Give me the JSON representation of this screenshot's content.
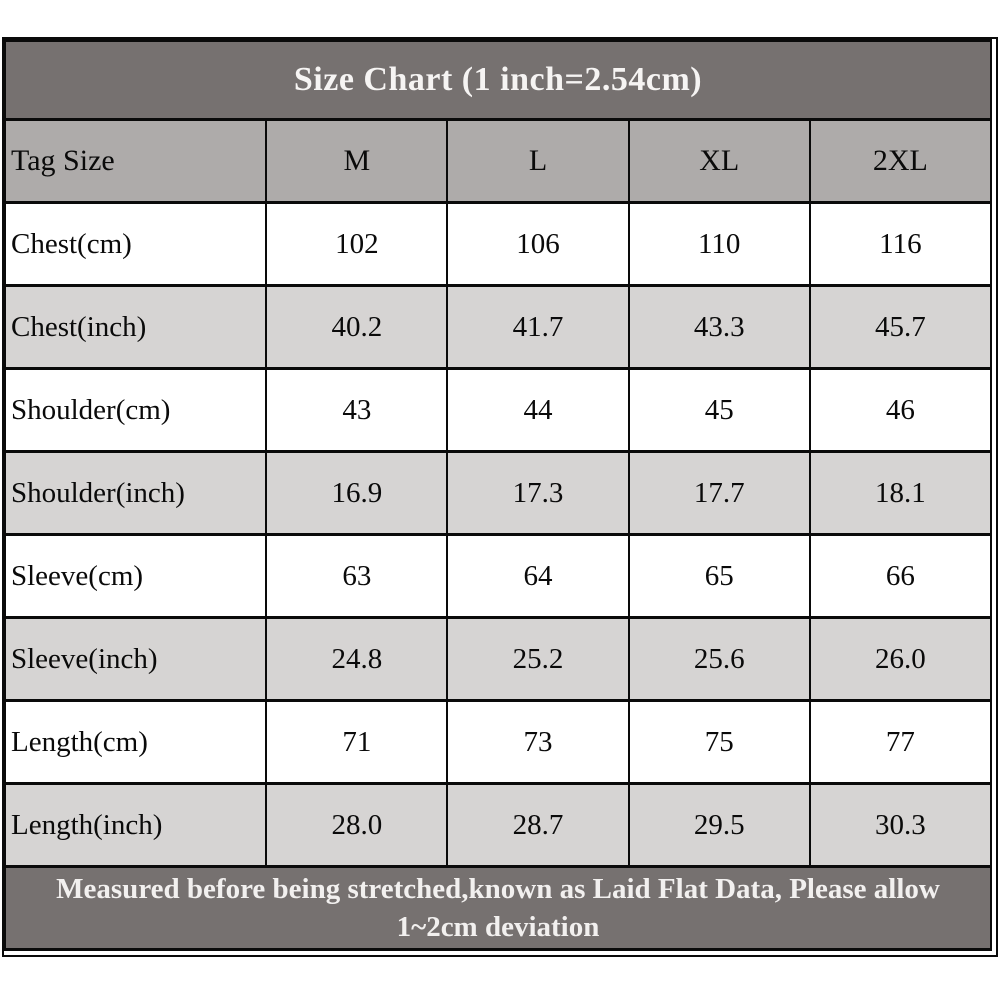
{
  "title": "Size Chart (1 inch=2.54cm)",
  "columns": [
    "Tag Size",
    "M",
    "L",
    "XL",
    "2XL"
  ],
  "rows": [
    {
      "label": "Chest(cm)",
      "values": [
        "102",
        "106",
        "110",
        "116"
      ]
    },
    {
      "label": "Chest(inch)",
      "values": [
        "40.2",
        "41.7",
        "43.3",
        "45.7"
      ]
    },
    {
      "label": "Shoulder(cm)",
      "values": [
        "43",
        "44",
        "45",
        "46"
      ]
    },
    {
      "label": "Shoulder(inch)",
      "values": [
        "16.9",
        "17.3",
        "17.7",
        "18.1"
      ]
    },
    {
      "label": "Sleeve(cm)",
      "values": [
        "63",
        "64",
        "65",
        "66"
      ]
    },
    {
      "label": "Sleeve(inch)",
      "values": [
        "24.8",
        "25.2",
        "25.6",
        "26.0"
      ]
    },
    {
      "label": "Length(cm)",
      "values": [
        "71",
        "73",
        "75",
        "77"
      ]
    },
    {
      "label": "Length(inch)",
      "values": [
        "28.0",
        "28.7",
        "29.5",
        "30.3"
      ]
    }
  ],
  "footer_note": "Measured before being stretched,known as Laid Flat Data, Please allow 1~2cm deviation",
  "colors": {
    "title_bg": "#767170",
    "column_header_bg": "#aeabaa",
    "row_bg": "#ffffff",
    "row_alt_bg": "#d6d4d3",
    "border": "#0a0a0a",
    "title_text": "#f6f4f3",
    "body_text": "#0a0a0a"
  },
  "chart_data": {
    "type": "table",
    "title": "Size Chart (1 inch=2.54cm)",
    "columns": [
      "Tag Size",
      "M",
      "L",
      "XL",
      "2XL"
    ],
    "rows": [
      [
        "Chest(cm)",
        102,
        106,
        110,
        116
      ],
      [
        "Chest(inch)",
        40.2,
        41.7,
        43.3,
        45.7
      ],
      [
        "Shoulder(cm)",
        43,
        44,
        45,
        46
      ],
      [
        "Shoulder(inch)",
        16.9,
        17.3,
        17.7,
        18.1
      ],
      [
        "Sleeve(cm)",
        63,
        64,
        65,
        66
      ],
      [
        "Sleeve(inch)",
        24.8,
        25.2,
        25.6,
        26.0
      ],
      [
        "Length(cm)",
        71,
        73,
        75,
        77
      ],
      [
        "Length(inch)",
        28.0,
        28.7,
        29.5,
        30.3
      ]
    ],
    "footnote": "Measured before being stretched,known as Laid Flat Data, Please allow 1~2cm deviation",
    "layout": {
      "grid": true,
      "zebra_striping": true,
      "title_position": "top",
      "footnote_position": "bottom"
    }
  }
}
